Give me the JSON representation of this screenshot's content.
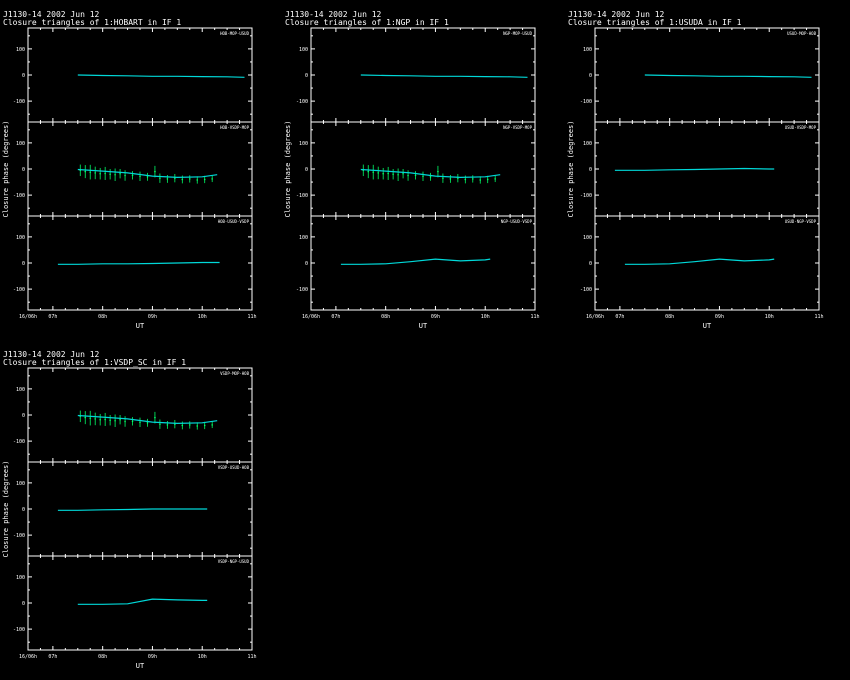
{
  "colors": {
    "background": "#000000",
    "axes": "#ffffff",
    "model": "#00d8d8",
    "data": "#00ff66"
  },
  "chart_data": [
    {
      "type": "line",
      "title": "J1130-14  2002 Jun 12",
      "subtitle": "Closure triangles of 1:HOBART in IF 1",
      "xlabel": "UT",
      "ylabel": "Closure phase  (degrees)",
      "xlim": [
        6.5,
        11
      ],
      "ylim": [
        -180,
        180
      ],
      "xticks": [
        "16/06h",
        "07h",
        "08h",
        "09h",
        "10h",
        "11h"
      ],
      "yticks": [
        "100",
        "0",
        "-100"
      ],
      "panels": [
        {
          "label": "HOB-MOP-USUD",
          "model": [
            [
              7.5,
              0
            ],
            [
              8,
              -2
            ],
            [
              8.5,
              -3
            ],
            [
              9,
              -5
            ],
            [
              9.5,
              -5
            ],
            [
              10,
              -6
            ],
            [
              10.5,
              -7
            ],
            [
              10.85,
              -9
            ]
          ],
          "points": []
        },
        {
          "label": "HOB-VSDP-MOP",
          "model": [
            [
              7.5,
              -2
            ],
            [
              8,
              -8
            ],
            [
              8.5,
              -15
            ],
            [
              9,
              -27
            ],
            [
              9.5,
              -32
            ],
            [
              10,
              -30
            ],
            [
              10.3,
              -22
            ]
          ],
          "points": [
            [
              7.55,
              -5,
              22
            ],
            [
              7.65,
              -10,
              25
            ],
            [
              7.75,
              -12,
              28
            ],
            [
              7.85,
              -15,
              24
            ],
            [
              7.95,
              -18,
              22
            ],
            [
              8.05,
              -17,
              25
            ],
            [
              8.15,
              -20,
              20
            ],
            [
              8.25,
              -22,
              24
            ],
            [
              8.35,
              -18,
              18
            ],
            [
              8.45,
              -25,
              20
            ],
            [
              8.6,
              -24,
              16
            ],
            [
              8.75,
              -28,
              18
            ],
            [
              8.9,
              -30,
              15
            ],
            [
              9.05,
              -10,
              22
            ],
            [
              9.15,
              -35,
              18
            ],
            [
              9.3,
              -38,
              15
            ],
            [
              9.45,
              -35,
              16
            ],
            [
              9.6,
              -40,
              15
            ],
            [
              9.75,
              -38,
              14
            ],
            [
              9.9,
              -42,
              14
            ],
            [
              10.05,
              -40,
              14
            ],
            [
              10.2,
              -38,
              12
            ]
          ]
        },
        {
          "label": "HOB-USUD-VSDP",
          "model": [
            [
              7.1,
              -5
            ],
            [
              7.5,
              -5
            ],
            [
              8,
              -3
            ],
            [
              8.5,
              -3
            ],
            [
              9,
              -2
            ],
            [
              9.5,
              0
            ],
            [
              10,
              2
            ],
            [
              10.35,
              2
            ]
          ],
          "points": []
        }
      ]
    },
    {
      "type": "line",
      "title": "J1130-14  2002 Jun 12",
      "subtitle": "Closure triangles of 1:NGP in IF 1",
      "xlabel": "UT",
      "ylabel": "Closure phase  (degrees)",
      "xlim": [
        6.5,
        11
      ],
      "ylim": [
        -180,
        180
      ],
      "xticks": [
        "16/06h",
        "07h",
        "08h",
        "09h",
        "10h",
        "11h"
      ],
      "yticks": [
        "100",
        "0",
        "-100"
      ],
      "panels": [
        {
          "label": "NGP-MOP-USUD",
          "model": [
            [
              7.5,
              0
            ],
            [
              8,
              -2
            ],
            [
              8.5,
              -3
            ],
            [
              9,
              -5
            ],
            [
              9.5,
              -5
            ],
            [
              10,
              -6
            ],
            [
              10.5,
              -7
            ],
            [
              10.85,
              -9
            ]
          ],
          "points": []
        },
        {
          "label": "NGP-VSDP-MOP",
          "model": [
            [
              7.5,
              -2
            ],
            [
              8,
              -8
            ],
            [
              8.5,
              -15
            ],
            [
              9,
              -27
            ],
            [
              9.5,
              -32
            ],
            [
              10,
              -30
            ],
            [
              10.3,
              -22
            ]
          ],
          "points": [
            [
              7.55,
              -5,
              22
            ],
            [
              7.65,
              -10,
              25
            ],
            [
              7.75,
              -12,
              28
            ],
            [
              7.85,
              -15,
              24
            ],
            [
              7.95,
              -18,
              22
            ],
            [
              8.05,
              -17,
              25
            ],
            [
              8.15,
              -20,
              20
            ],
            [
              8.25,
              -22,
              24
            ],
            [
              8.35,
              -18,
              18
            ],
            [
              8.45,
              -25,
              20
            ],
            [
              8.6,
              -24,
              16
            ],
            [
              8.75,
              -28,
              18
            ],
            [
              8.9,
              -30,
              15
            ],
            [
              9.05,
              -10,
              22
            ],
            [
              9.15,
              -35,
              18
            ],
            [
              9.3,
              -38,
              15
            ],
            [
              9.45,
              -35,
              16
            ],
            [
              9.6,
              -40,
              15
            ],
            [
              9.75,
              -38,
              14
            ],
            [
              9.9,
              -42,
              14
            ],
            [
              10.05,
              -40,
              14
            ],
            [
              10.2,
              -38,
              12
            ]
          ]
        },
        {
          "label": "NGP-USUD-VSDP",
          "model": [
            [
              7.1,
              -5
            ],
            [
              7.5,
              -5
            ],
            [
              8,
              -3
            ],
            [
              8.5,
              5
            ],
            [
              9,
              15
            ],
            [
              9.5,
              8
            ],
            [
              10,
              12
            ],
            [
              10.1,
              15
            ]
          ],
          "points": []
        }
      ]
    },
    {
      "type": "line",
      "title": "J1130-14  2002 Jun 12",
      "subtitle": "Closure triangles of 1:USUDA in IF 1",
      "xlabel": "UT",
      "ylabel": "Closure phase  (degrees)",
      "xlim": [
        6.5,
        11
      ],
      "ylim": [
        -180,
        180
      ],
      "xticks": [
        "16/06h",
        "07h",
        "08h",
        "09h",
        "10h",
        "11h"
      ],
      "yticks": [
        "100",
        "0",
        "-100"
      ],
      "panels": [
        {
          "label": "USUD-MOP-HOB",
          "model": [
            [
              7.5,
              0
            ],
            [
              8,
              -2
            ],
            [
              8.5,
              -3
            ],
            [
              9,
              -5
            ],
            [
              9.5,
              -5
            ],
            [
              10,
              -6
            ],
            [
              10.5,
              -7
            ],
            [
              10.85,
              -9
            ]
          ],
          "points": []
        },
        {
          "label": "USUD-VSDP-MOP",
          "model": [
            [
              6.9,
              -5
            ],
            [
              7.5,
              -5
            ],
            [
              8,
              -3
            ],
            [
              8.5,
              -2
            ],
            [
              9,
              0
            ],
            [
              9.5,
              2
            ],
            [
              10,
              0
            ],
            [
              10.1,
              0
            ]
          ],
          "points": []
        },
        {
          "label": "USUD-NGP-VSDP",
          "model": [
            [
              7.1,
              -5
            ],
            [
              7.5,
              -5
            ],
            [
              8,
              -3
            ],
            [
              8.5,
              5
            ],
            [
              9,
              15
            ],
            [
              9.5,
              8
            ],
            [
              10,
              12
            ],
            [
              10.1,
              15
            ]
          ],
          "points": []
        }
      ]
    },
    {
      "type": "line",
      "title": "J1130-14  2002 Jun 12",
      "subtitle": "Closure triangles of 1:VSDP_SC in IF 1",
      "xlabel": "UT",
      "ylabel": "Closure phase  (degrees)",
      "xlim": [
        6.5,
        11
      ],
      "ylim": [
        -180,
        180
      ],
      "xticks": [
        "16/06h",
        "07h",
        "08h",
        "09h",
        "10h",
        "11h"
      ],
      "yticks": [
        "100",
        "0",
        "-100"
      ],
      "panels": [
        {
          "label": "VSDP-MOP-HOB",
          "model": [
            [
              7.5,
              -2
            ],
            [
              8,
              -8
            ],
            [
              8.5,
              -15
            ],
            [
              9,
              -27
            ],
            [
              9.5,
              -32
            ],
            [
              10,
              -30
            ],
            [
              10.3,
              -22
            ]
          ],
          "points": [
            [
              7.55,
              -5,
              22
            ],
            [
              7.65,
              -10,
              25
            ],
            [
              7.75,
              -12,
              28
            ],
            [
              7.85,
              -15,
              24
            ],
            [
              7.95,
              -18,
              22
            ],
            [
              8.05,
              -17,
              25
            ],
            [
              8.15,
              -20,
              20
            ],
            [
              8.25,
              -22,
              24
            ],
            [
              8.35,
              -18,
              18
            ],
            [
              8.45,
              -25,
              20
            ],
            [
              8.6,
              -24,
              16
            ],
            [
              8.75,
              -28,
              18
            ],
            [
              8.9,
              -30,
              15
            ],
            [
              9.05,
              -10,
              22
            ],
            [
              9.15,
              -35,
              18
            ],
            [
              9.3,
              -38,
              15
            ],
            [
              9.45,
              -35,
              16
            ],
            [
              9.6,
              -40,
              15
            ],
            [
              9.75,
              -38,
              14
            ],
            [
              9.9,
              -42,
              14
            ],
            [
              10.05,
              -40,
              14
            ],
            [
              10.2,
              -38,
              12
            ]
          ]
        },
        {
          "label": "VSDP-USUD-HOB",
          "model": [
            [
              7.1,
              -5
            ],
            [
              7.5,
              -5
            ],
            [
              8,
              -3
            ],
            [
              8.5,
              -2
            ],
            [
              9,
              0
            ],
            [
              9.5,
              0
            ],
            [
              10,
              0
            ],
            [
              10.1,
              0
            ]
          ],
          "points": []
        },
        {
          "label": "VSDP-NGP-USUD",
          "model": [
            [
              7.5,
              -5
            ],
            [
              8,
              -5
            ],
            [
              8.5,
              -3
            ],
            [
              9,
              15
            ],
            [
              9.5,
              12
            ],
            [
              10,
              10
            ],
            [
              10.1,
              10
            ]
          ],
          "points": []
        }
      ]
    }
  ]
}
